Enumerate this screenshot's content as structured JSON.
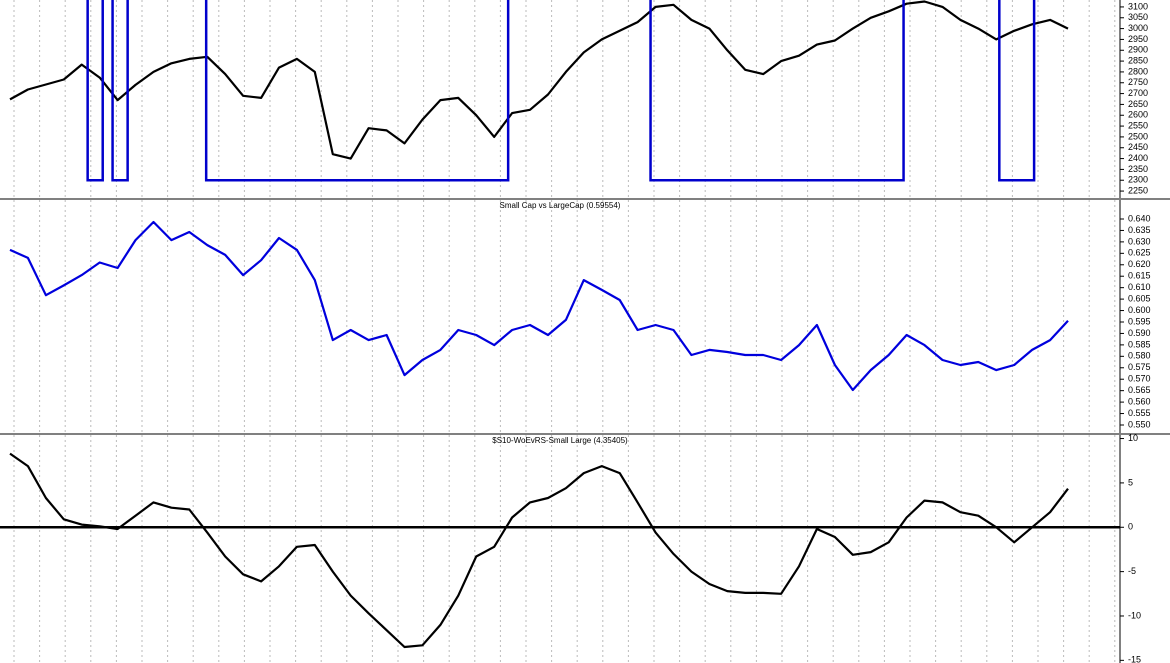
{
  "chart_data": [
    {
      "type": "line",
      "series": [
        {
          "color": "#000000",
          "values": [
            2673,
            2719,
            2742,
            2765,
            2834,
            2774,
            2670,
            2740,
            2800,
            2840,
            2860,
            2870,
            2790,
            2690,
            2680,
            2820,
            2860,
            2800,
            2420,
            2400,
            2540,
            2530,
            2470,
            2580,
            2670,
            2680,
            2600,
            2500,
            2610,
            2625,
            2696,
            2800,
            2890,
            2950,
            2990,
            3030,
            3100,
            3110,
            3040,
            3000,
            2900,
            2810,
            2790,
            2850,
            2875,
            2926,
            2945,
            3000,
            3050,
            3080,
            3115,
            3125,
            3100,
            3040,
            3000,
            2950,
            2990,
            3020,
            3040,
            3000
          ]
        }
      ],
      "signal": {
        "color": "#0000cc",
        "low": 2300,
        "high": 3200,
        "low_periods": [
          [
            4.33,
            5.17
          ],
          [
            5.72,
            6.56
          ],
          [
            10.94,
            27.78
          ],
          [
            35.72,
            49.83
          ],
          [
            55.17,
            57.11
          ]
        ]
      },
      "ylim": [
        2218,
        3132
      ],
      "yticks": [
        2250,
        2300,
        2350,
        2400,
        2450,
        2500,
        2550,
        2600,
        2650,
        2700,
        2750,
        2800,
        2850,
        2900,
        2950,
        3000,
        3050,
        3100
      ]
    },
    {
      "type": "line",
      "title": "Small Cap vs LargeCap (0.59554)",
      "series": [
        {
          "color": "#0000dd",
          "values": [
            0.6265,
            0.623,
            0.6067,
            0.611,
            0.6155,
            0.621,
            0.6186,
            0.6308,
            0.6387,
            0.6308,
            0.6343,
            0.6286,
            0.6243,
            0.6155,
            0.622,
            0.6317,
            0.6265,
            0.6133,
            0.5871,
            0.5915,
            0.5871,
            0.5893,
            0.5718,
            0.5784,
            0.5828,
            0.5915,
            0.5893,
            0.5849,
            0.5915,
            0.5937,
            0.5893,
            0.5959,
            0.6133,
            0.609,
            0.6046,
            0.5915,
            0.5937,
            0.5915,
            0.5806,
            0.5828,
            0.5819,
            0.5806,
            0.5806,
            0.5784,
            0.5849,
            0.5937,
            0.5762,
            0.5653,
            0.574,
            0.5806,
            0.5893,
            0.5849,
            0.5784,
            0.5762,
            0.5775,
            0.574,
            0.5762,
            0.5828,
            0.5871,
            0.5955
          ]
        }
      ],
      "ylim": [
        0.5465,
        0.6483
      ],
      "yticks": [
        {
          "value": 0.55,
          "label": "0.550"
        },
        {
          "value": 0.555,
          "label": "0.555"
        },
        {
          "value": 0.56,
          "label": "0.560"
        },
        {
          "value": 0.565,
          "label": "0.565"
        },
        {
          "value": 0.57,
          "label": "0.570"
        },
        {
          "value": 0.575,
          "label": "0.575"
        },
        {
          "value": 0.58,
          "label": "0.580"
        },
        {
          "value": 0.585,
          "label": "0.585"
        },
        {
          "value": 0.59,
          "label": "0.590"
        },
        {
          "value": 0.595,
          "label": "0.595"
        },
        {
          "value": 0.6,
          "label": "0.600"
        },
        {
          "value": 0.605,
          "label": "0.605"
        },
        {
          "value": 0.61,
          "label": "0.610"
        },
        {
          "value": 0.615,
          "label": "0.615"
        },
        {
          "value": 0.62,
          "label": "0.620"
        },
        {
          "value": 0.625,
          "label": "0.625"
        },
        {
          "value": 0.63,
          "label": "0.630"
        },
        {
          "value": 0.635,
          "label": "0.635"
        },
        {
          "value": 0.64,
          "label": "0.640"
        }
      ]
    },
    {
      "type": "line",
      "title": "$S10-WoEvRS-Small Large (4.35405)",
      "series": [
        {
          "color": "#000000",
          "values": [
            8.3,
            6.9,
            3.3,
            0.9,
            0.3,
            0.1,
            -0.2,
            1.3,
            2.8,
            2.2,
            2.0,
            -0.6,
            -3.3,
            -5.3,
            -6.1,
            -4.4,
            -2.2,
            -2.0,
            -5.0,
            -7.7,
            -9.7,
            -11.6,
            -13.5,
            -13.3,
            -11.0,
            -7.7,
            -3.3,
            -2.2,
            1.1,
            2.8,
            3.3,
            4.4,
            6.1,
            6.9,
            6.1,
            2.8,
            -0.6,
            -3.0,
            -5.0,
            -6.4,
            -7.2,
            -7.4,
            -7.4,
            -7.5,
            -4.4,
            -0.2,
            -1.1,
            -3.1,
            -2.8,
            -1.7,
            1.1,
            3.0,
            2.8,
            1.7,
            1.3,
            0.0,
            -1.7,
            0.0,
            1.7,
            4.35
          ]
        }
      ],
      "reference_line": 0,
      "ylim": [
        -15.3,
        10.4
      ],
      "yticks": [
        10,
        5,
        0,
        -5,
        -10,
        -15
      ]
    }
  ]
}
